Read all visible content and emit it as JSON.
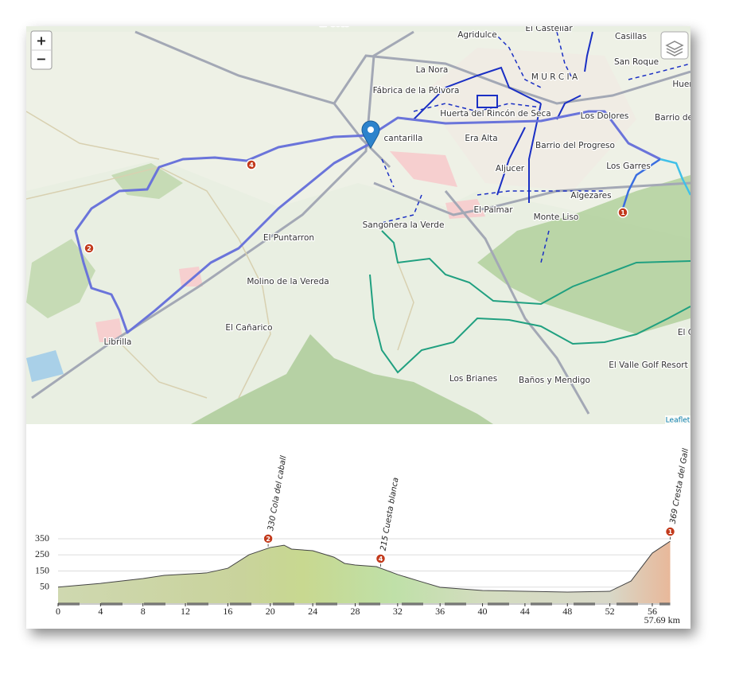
{
  "map": {
    "zoom_in": "+",
    "zoom_out": "−",
    "attribution": "Leaflet",
    "places": [
      "El Cote",
      "Agridulce",
      "El Castellar",
      "Casillas",
      "San Roque",
      "Huer",
      "La Nora",
      "M U R C I A",
      "Fábrica de la Pólvora",
      "Huerta del Rincón de Seca",
      "Los Dolores",
      "Barrio de",
      "cantarilla",
      "Era Alta",
      "Barrio del Progreso",
      "Aljucer",
      "Los Garres",
      "Algezares",
      "El Palmar",
      "Monte Liso",
      "Sangonera la Verde",
      "El Puntarron",
      "Molino de la Vereda",
      "El Cañarico",
      "Librilla",
      "Los Brianes",
      "Baños y Mendigo",
      "El Valle Golf Resort",
      "El C"
    ],
    "markers": [
      "4",
      "2",
      "1"
    ]
  },
  "elevation": {
    "xlim": [
      0,
      57.69
    ],
    "ylim": [
      -50,
      350
    ],
    "yticks": [
      50,
      150,
      250,
      350
    ],
    "xticks": [
      0,
      4,
      8,
      12,
      16,
      20,
      24,
      28,
      32,
      36,
      40,
      44,
      48,
      52,
      56
    ],
    "total_label": "57.69 km",
    "x": [
      0,
      4,
      8,
      10,
      14,
      16,
      18,
      20,
      21.3,
      22,
      24,
      26,
      27,
      28,
      30,
      32,
      34,
      36,
      40,
      44,
      48,
      52,
      54,
      56,
      57.69
    ],
    "values": [
      50,
      73,
      103,
      123,
      138,
      167,
      251,
      296,
      310,
      286,
      276,
      236,
      197,
      187,
      177,
      128,
      88,
      49,
      29,
      24,
      19,
      24,
      88,
      261,
      335
    ],
    "waypoints": [
      {
        "marker": "2",
        "label": "330 Cola del caball",
        "km": 19.8
      },
      {
        "marker": "4",
        "label": "215 Cuesta blanca",
        "km": 30.4
      },
      {
        "marker": "1",
        "label": "369 Cresta del Gall",
        "km": 57.69
      }
    ]
  }
}
